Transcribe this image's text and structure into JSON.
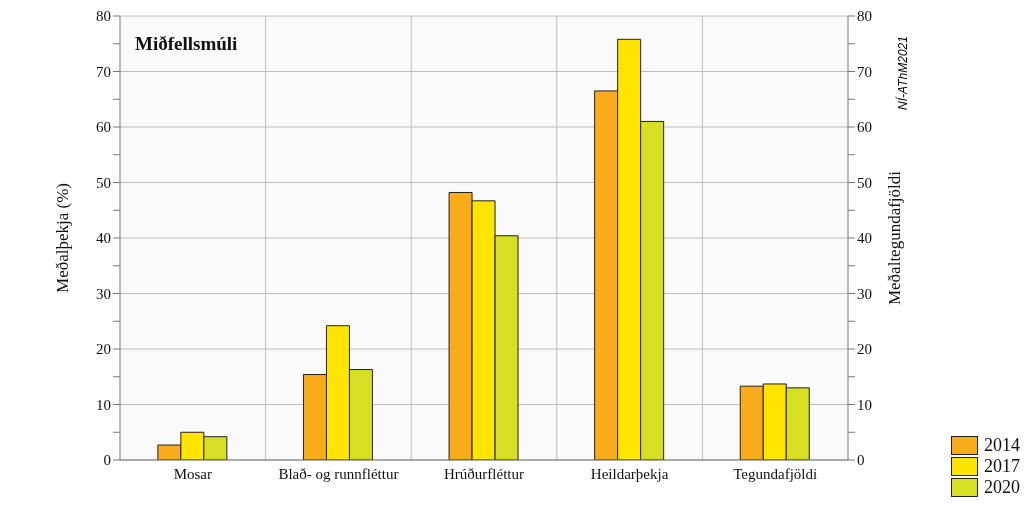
{
  "chart_data": {
    "type": "bar",
    "title": "Miðfellsmúli",
    "ylabel": "Meðalþekja (%)",
    "y2label": "Meðaltegundafjöldi",
    "categories": [
      "Mosar",
      "Blað- og runnfléttur",
      "Hrúðurfléttur",
      "Heildarþekja",
      "Tegundafjöldi"
    ],
    "series": [
      {
        "name": "2014",
        "color": "#f9ab1b",
        "values": [
          2.7,
          15.4,
          48.2,
          66.5,
          13.3
        ]
      },
      {
        "name": "2017",
        "color": "#ffe400",
        "values": [
          5.0,
          24.2,
          46.7,
          75.8,
          13.7
        ]
      },
      {
        "name": "2020",
        "color": "#d6df23",
        "values": [
          4.2,
          16.3,
          40.4,
          61.0,
          13.0
        ]
      }
    ],
    "ylim": [
      0,
      80
    ],
    "yticks": [
      0,
      {
        "value": 5,
        "label": null
      },
      10,
      {
        "value": 15,
        "label": null
      },
      20,
      {
        "value": 25,
        "label": null
      },
      30,
      {
        "value": 35,
        "label": null
      },
      40,
      {
        "value": 45,
        "label": null
      },
      50,
      {
        "value": 55,
        "label": null
      },
      60,
      {
        "value": 65,
        "label": null
      },
      70,
      {
        "value": 75,
        "label": null
      },
      80
    ],
    "y2lim": [
      0,
      80
    ],
    "y2ticks": [
      0,
      {
        "value": 5,
        "label": null
      },
      10,
      {
        "value": 15,
        "label": null
      },
      20,
      {
        "value": 25,
        "label": null
      },
      30,
      {
        "value": 35,
        "label": null
      },
      40,
      {
        "value": 45,
        "label": null
      },
      50,
      {
        "value": 55,
        "label": null
      },
      60,
      {
        "value": 65,
        "label": null
      },
      70,
      {
        "value": 75,
        "label": null
      },
      80
    ],
    "grid": true,
    "legend": "bottom right",
    "annotations": [
      "NÍ-AThM2021"
    ]
  }
}
